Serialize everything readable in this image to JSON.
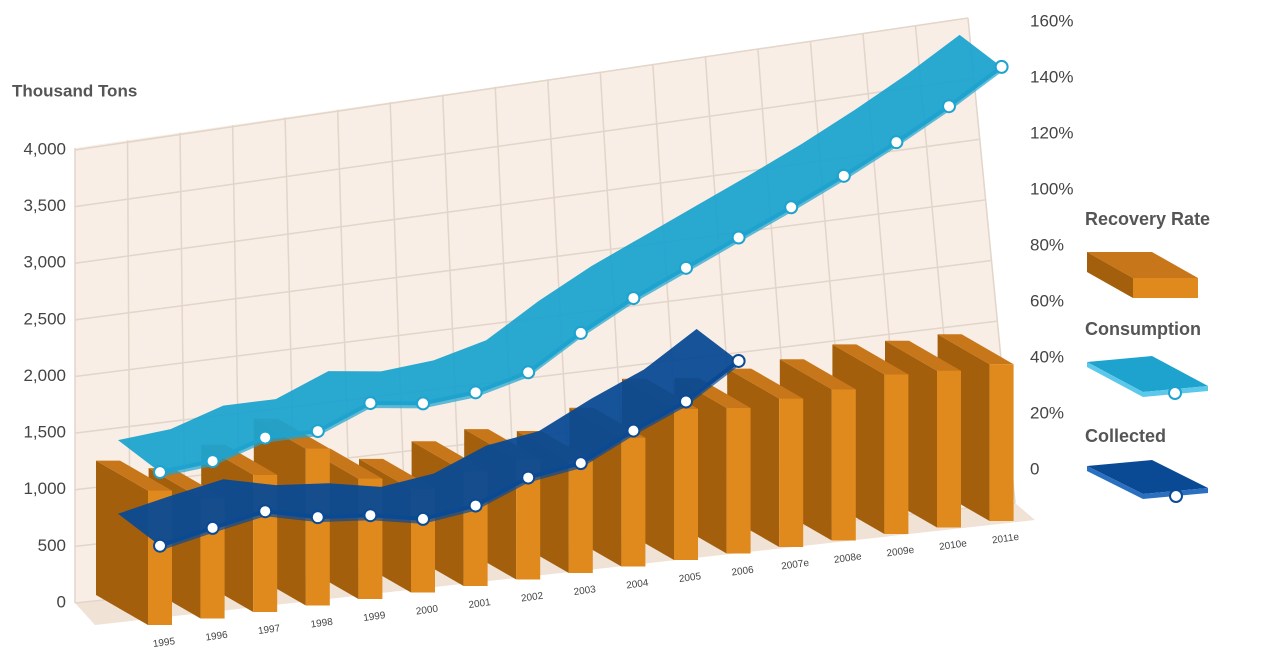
{
  "chart_data": {
    "type": "bar-line-3d",
    "y_axis_label": "Thousand Tons",
    "categories": [
      "1995",
      "1996",
      "1997",
      "1998",
      "1999",
      "2000",
      "2001",
      "2002",
      "2003",
      "2004",
      "2005",
      "2006",
      "2007e",
      "2008e",
      "2009e",
      "2010e",
      "2011e"
    ],
    "series": [
      {
        "name": "Recovery Rate",
        "type": "bar",
        "axis": "y2",
        "color": "#e08a1e",
        "values": [
          48,
          43,
          49,
          56,
          43,
          37,
          41,
          43,
          40,
          46,
          54,
          52,
          53,
          54,
          57,
          56,
          56
        ]
      },
      {
        "name": "Consumption",
        "type": "line",
        "color": "#1ea3cf",
        "values": [
          1350,
          1390,
          1540,
          1540,
          1730,
          1670,
          1710,
          1830,
          2120,
          2370,
          2580,
          2790,
          3000,
          3220,
          3460,
          3720,
          4010
        ]
      },
      {
        "name": "Collected",
        "type": "line",
        "color": "#0a4a94",
        "values": [
          700,
          800,
          890,
          780,
          740,
          650,
          710,
          900,
          970,
          1200,
          1400,
          1700,
          null,
          null,
          null,
          null,
          null
        ]
      }
    ],
    "ylim": [
      0,
      4000
    ],
    "yticks": [
      0,
      {
        "value": 500,
        "label": "500"
      },
      {
        "value": 1000,
        "label": "1,000"
      },
      {
        "value": 1500,
        "label": "1,500"
      },
      {
        "value": 2000,
        "label": "2,000"
      },
      {
        "value": 2500,
        "label": "2,500"
      },
      {
        "value": 3000,
        "label": "3,000"
      },
      {
        "value": 3500,
        "label": "3,500"
      },
      {
        "value": 4000,
        "label": "4,000"
      }
    ],
    "y2lim": [
      0,
      160
    ],
    "y2ticks": [
      0,
      {
        "value": 20,
        "label": "20%"
      },
      {
        "value": 40,
        "label": "40%"
      },
      {
        "value": 60,
        "label": "60%"
      },
      {
        "value": 80,
        "label": "80%"
      },
      {
        "value": 100,
        "label": "100%"
      },
      {
        "value": 120,
        "label": "120%"
      },
      {
        "value": 140,
        "label": "140%"
      },
      {
        "value": 160,
        "label": "160%"
      }
    ],
    "grid": true
  }
}
